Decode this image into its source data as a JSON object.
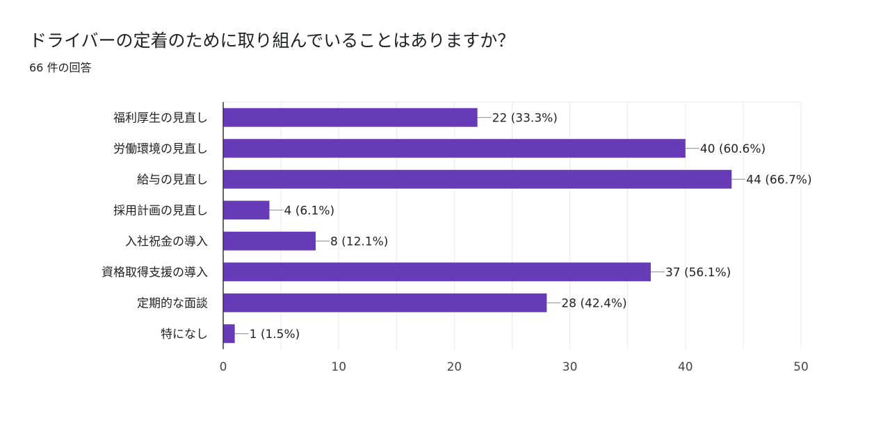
{
  "header": {
    "question": "ドライバーの定着のために取り組んでいることはありますか？",
    "response_count": "66 件の回答"
  },
  "colors": {
    "bar": "#673ab7",
    "grid": "#e8e8e8",
    "axis": "#333333",
    "label_text": "#222222",
    "tick_text": "#444444"
  },
  "chart_data": {
    "type": "bar",
    "orientation": "horizontal",
    "categories": [
      "福利厚生の見直し",
      "労働環境の見直し",
      "給与の見直し",
      "採用計画の見直し",
      "入社祝金の導入",
      "資格取得支援の導入",
      "定期的な面談",
      "特になし"
    ],
    "values": [
      22,
      40,
      44,
      4,
      8,
      37,
      28,
      1
    ],
    "data_labels": [
      "22 (33.3%)",
      "40 (60.6%)",
      "44 (66.7%)",
      "4 (6.1%)",
      "8 (12.1%)",
      "37 (56.1%)",
      "28 (42.4%)",
      "1 (1.5%)"
    ],
    "xlim": [
      0,
      50
    ],
    "xticks": [
      0,
      10,
      20,
      30,
      40,
      50
    ],
    "grid": true,
    "legend": "none"
  }
}
